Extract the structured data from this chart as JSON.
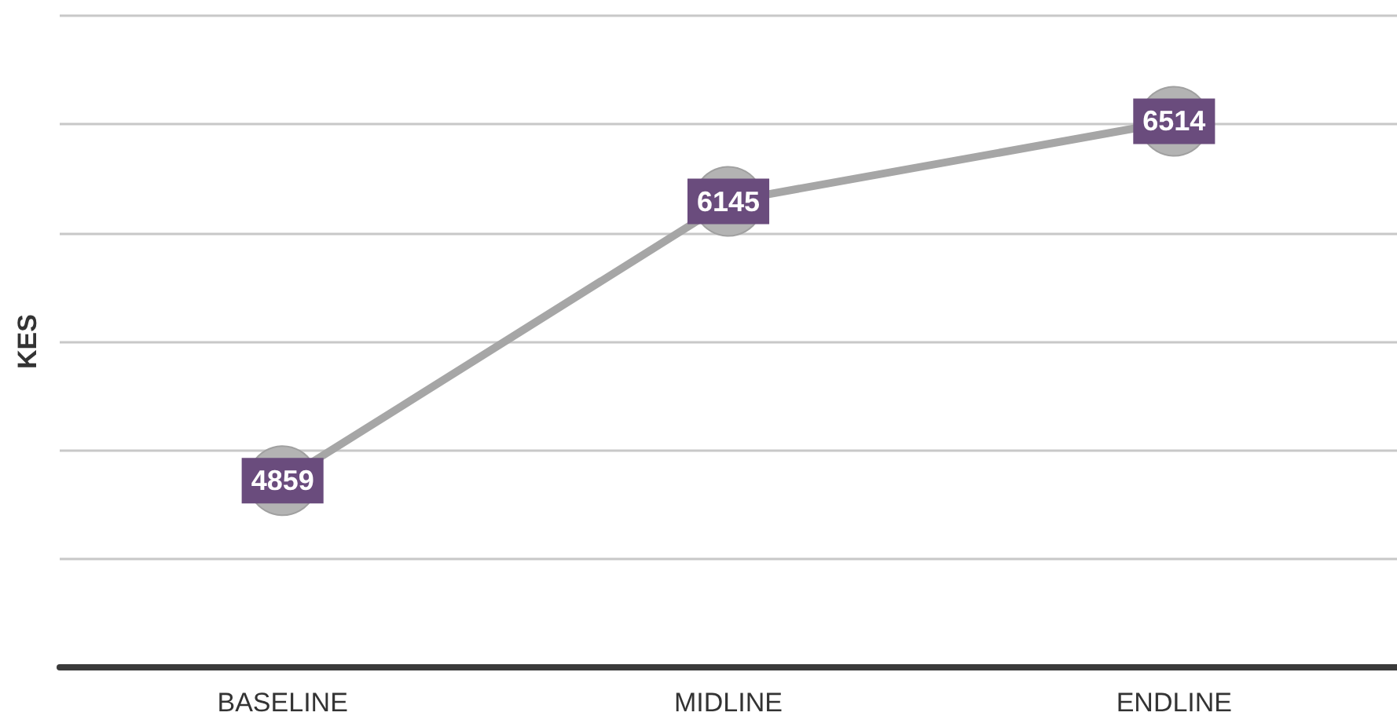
{
  "chart_data": {
    "type": "line",
    "ylabel": "KES",
    "categories": [
      "BASELINE",
      "MIDLINE",
      "ENDLINE"
    ],
    "series": [
      {
        "color": "#a6a6a6",
        "values": [
          4859,
          6145,
          6514
        ]
      }
    ],
    "ylim": [
      4000,
      7000
    ],
    "yticks": [
      {
        "value": 4000,
        "label": null
      },
      {
        "value": 4500,
        "label": null
      },
      {
        "value": 5000,
        "label": null
      },
      {
        "value": 5500,
        "label": null
      },
      {
        "value": 6000,
        "label": null
      },
      {
        "value": 6500,
        "label": null
      },
      {
        "value": 7000,
        "label": null
      }
    ],
    "tick_labels": "x",
    "grid": "y",
    "marker": "circle",
    "line_style": "solid",
    "data_labels": true
  }
}
